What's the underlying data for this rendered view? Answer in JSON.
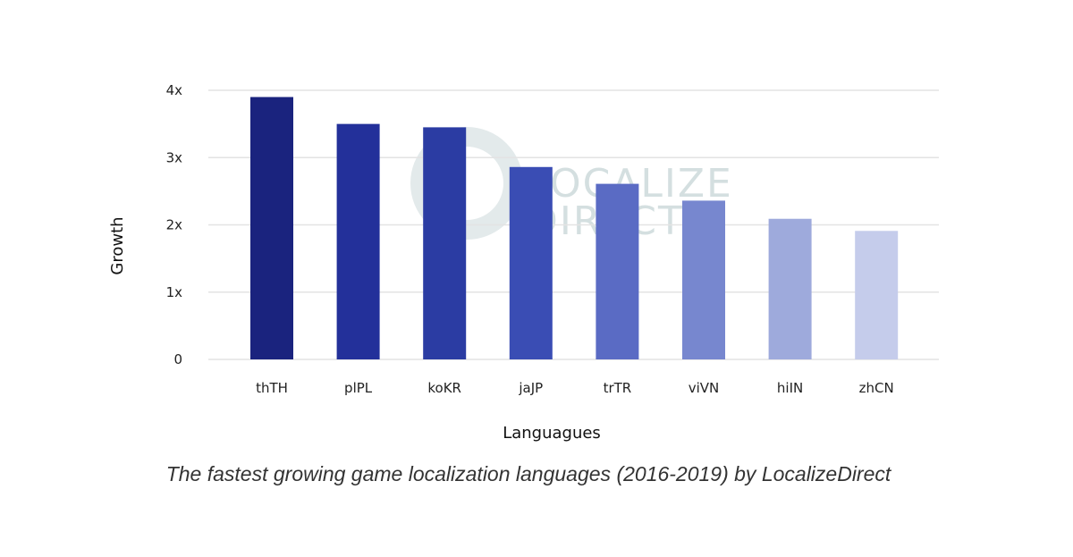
{
  "caption": "The fastest growing game localization languages (2016-2019) by LocalizeDirect",
  "watermark": {
    "line1": "LOCALIZE",
    "line2": "DIRECT",
    "color": "#d4dfe0"
  },
  "chart_data": {
    "type": "bar",
    "title": "",
    "xlabel": "Languagues",
    "ylabel": "Growth",
    "categories": [
      "thTH",
      "plPL",
      "koKR",
      "jaJP",
      "trTR",
      "viVN",
      "hiIN",
      "zhCN"
    ],
    "values": [
      3.9,
      3.5,
      3.45,
      2.86,
      2.61,
      2.36,
      2.09,
      1.91
    ],
    "colors": [
      "#1a237e",
      "#23309a",
      "#2b3ca3",
      "#3a4db4",
      "#5a6bc4",
      "#7787cf",
      "#9eaadc",
      "#c5cceb"
    ],
    "ylim": [
      0,
      4
    ],
    "yticks": [
      0,
      1,
      2,
      3,
      4
    ],
    "ytick_labels": [
      "0",
      "1x",
      "2x",
      "3x",
      "4x"
    ],
    "grid": true,
    "legend": "none"
  }
}
